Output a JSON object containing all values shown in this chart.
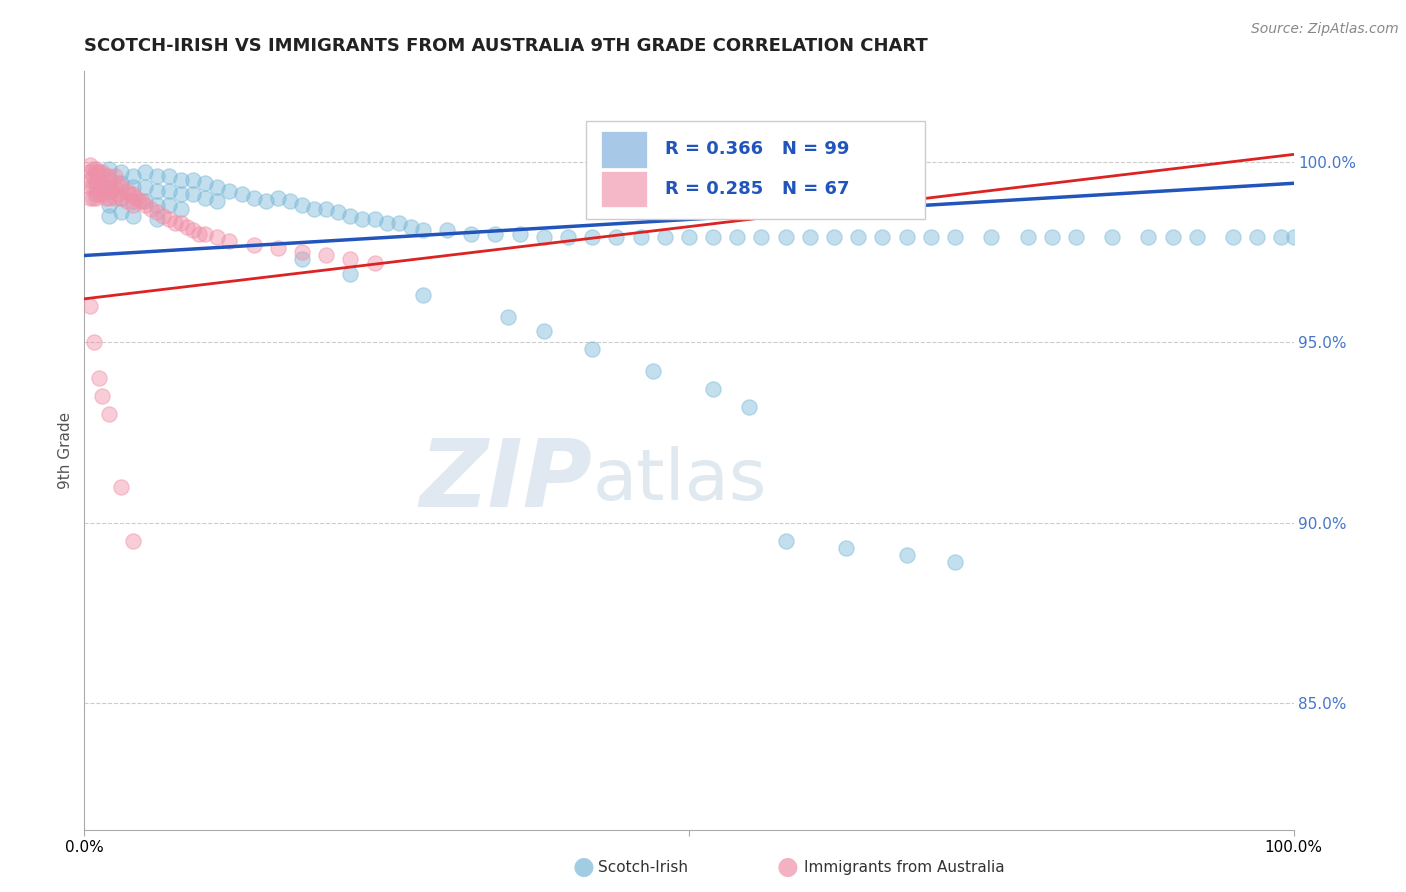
{
  "title": "SCOTCH-IRISH VS IMMIGRANTS FROM AUSTRALIA 9TH GRADE CORRELATION CHART",
  "source": "Source: ZipAtlas.com",
  "ylabel": "9th Grade",
  "yticks": [
    0.85,
    0.9,
    0.95,
    1.0
  ],
  "ytick_labels": [
    "85.0%",
    "90.0%",
    "95.0%",
    "100.0%"
  ],
  "xlim": [
    0.0,
    1.0
  ],
  "ylim": [
    0.815,
    1.025
  ],
  "legend_blue_label_r": "R = 0.366",
  "legend_blue_label_n": "N = 99",
  "legend_pink_label_r": "R = 0.285",
  "legend_pink_label_n": "N = 67",
  "legend_blue_color": "#a8c8e8",
  "legend_pink_color": "#f4b8c8",
  "blue_color": "#7ab8d8",
  "pink_color": "#f090a8",
  "trend_blue_color": "#2255bb",
  "trend_pink_color": "#dd2222",
  "watermark_zip": "ZIP",
  "watermark_atlas": "atlas",
  "blue_scatter_x": [
    0.01,
    0.01,
    0.01,
    0.02,
    0.02,
    0.02,
    0.02,
    0.02,
    0.03,
    0.03,
    0.03,
    0.03,
    0.04,
    0.04,
    0.04,
    0.04,
    0.05,
    0.05,
    0.05,
    0.06,
    0.06,
    0.06,
    0.06,
    0.07,
    0.07,
    0.07,
    0.08,
    0.08,
    0.08,
    0.09,
    0.09,
    0.1,
    0.1,
    0.11,
    0.11,
    0.12,
    0.13,
    0.14,
    0.15,
    0.16,
    0.17,
    0.18,
    0.19,
    0.2,
    0.21,
    0.22,
    0.23,
    0.24,
    0.25,
    0.26,
    0.27,
    0.28,
    0.3,
    0.32,
    0.34,
    0.36,
    0.38,
    0.4,
    0.42,
    0.44,
    0.46,
    0.48,
    0.5,
    0.52,
    0.54,
    0.56,
    0.58,
    0.6,
    0.62,
    0.64,
    0.66,
    0.68,
    0.7,
    0.72,
    0.75,
    0.78,
    0.8,
    0.82,
    0.85,
    0.88,
    0.9,
    0.92,
    0.95,
    0.97,
    0.99,
    1.0,
    0.18,
    0.22,
    0.28,
    0.35,
    0.38,
    0.42,
    0.47,
    0.52,
    0.55,
    0.58,
    0.63,
    0.68,
    0.72
  ],
  "blue_scatter_y": [
    0.997,
    0.994,
    0.991,
    0.998,
    0.995,
    0.992,
    0.988,
    0.985,
    0.997,
    0.994,
    0.99,
    0.986,
    0.996,
    0.993,
    0.989,
    0.985,
    0.997,
    0.993,
    0.989,
    0.996,
    0.992,
    0.988,
    0.984,
    0.996,
    0.992,
    0.988,
    0.995,
    0.991,
    0.987,
    0.995,
    0.991,
    0.994,
    0.99,
    0.993,
    0.989,
    0.992,
    0.991,
    0.99,
    0.989,
    0.99,
    0.989,
    0.988,
    0.987,
    0.987,
    0.986,
    0.985,
    0.984,
    0.984,
    0.983,
    0.983,
    0.982,
    0.981,
    0.981,
    0.98,
    0.98,
    0.98,
    0.979,
    0.979,
    0.979,
    0.979,
    0.979,
    0.979,
    0.979,
    0.979,
    0.979,
    0.979,
    0.979,
    0.979,
    0.979,
    0.979,
    0.979,
    0.979,
    0.979,
    0.979,
    0.979,
    0.979,
    0.979,
    0.979,
    0.979,
    0.979,
    0.979,
    0.979,
    0.979,
    0.979,
    0.979,
    0.979,
    0.973,
    0.969,
    0.963,
    0.957,
    0.953,
    0.948,
    0.942,
    0.937,
    0.932,
    0.895,
    0.893,
    0.891,
    0.889
  ],
  "pink_scatter_x": [
    0.005,
    0.005,
    0.005,
    0.005,
    0.005,
    0.007,
    0.007,
    0.007,
    0.007,
    0.01,
    0.01,
    0.01,
    0.01,
    0.012,
    0.012,
    0.012,
    0.015,
    0.015,
    0.015,
    0.018,
    0.018,
    0.018,
    0.02,
    0.02,
    0.02,
    0.022,
    0.025,
    0.025,
    0.025,
    0.028,
    0.028,
    0.03,
    0.03,
    0.035,
    0.035,
    0.038,
    0.04,
    0.04,
    0.043,
    0.045,
    0.048,
    0.05,
    0.055,
    0.06,
    0.065,
    0.07,
    0.075,
    0.08,
    0.085,
    0.09,
    0.095,
    0.1,
    0.11,
    0.12,
    0.14,
    0.16,
    0.18,
    0.2,
    0.22,
    0.24,
    0.02,
    0.03,
    0.04,
    0.005,
    0.008,
    0.012,
    0.015
  ],
  "pink_scatter_y": [
    0.999,
    0.997,
    0.995,
    0.993,
    0.99,
    0.998,
    0.996,
    0.993,
    0.99,
    0.998,
    0.996,
    0.993,
    0.99,
    0.997,
    0.994,
    0.991,
    0.997,
    0.994,
    0.991,
    0.996,
    0.993,
    0.99,
    0.996,
    0.993,
    0.99,
    0.992,
    0.996,
    0.993,
    0.99,
    0.994,
    0.991,
    0.993,
    0.99,
    0.992,
    0.989,
    0.991,
    0.991,
    0.988,
    0.99,
    0.989,
    0.989,
    0.988,
    0.987,
    0.986,
    0.985,
    0.984,
    0.983,
    0.983,
    0.982,
    0.981,
    0.98,
    0.98,
    0.979,
    0.978,
    0.977,
    0.976,
    0.975,
    0.974,
    0.973,
    0.972,
    0.93,
    0.91,
    0.895,
    0.96,
    0.95,
    0.94,
    0.935
  ],
  "trend_blue_start_y": 0.974,
  "trend_blue_end_y": 0.994,
  "trend_pink_start_y": 0.962,
  "trend_pink_end_y": 1.002
}
